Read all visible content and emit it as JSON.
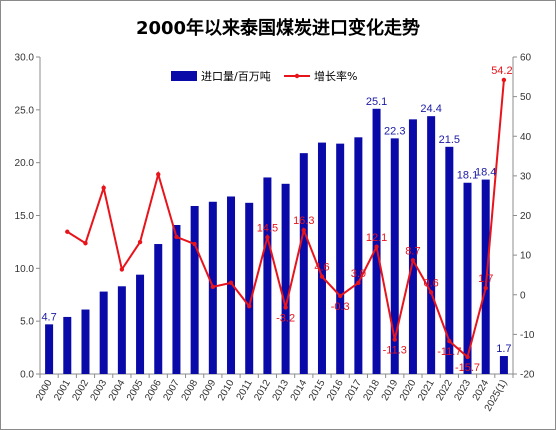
{
  "chart": {
    "title": "2000年以来泰国煤炭进口变化走势"
  },
  "colors": {
    "bar": "#0a0aa8",
    "line": "#e8141b",
    "bar_label": "#1a1aa6",
    "line_label": "#e8141b"
  },
  "chart_data": {
    "type": "bar",
    "title": "2000年以来泰国煤炭进口变化走势",
    "categories": [
      "2000",
      "2001",
      "2002",
      "2003",
      "2004",
      "2005",
      "2006",
      "2007",
      "2008",
      "2009",
      "2010",
      "2011",
      "2012",
      "2013",
      "2014",
      "2015",
      "2016",
      "2017",
      "2018",
      "2019",
      "2020",
      "2021",
      "2022",
      "2023",
      "2024",
      "2025(1)"
    ],
    "series": [
      {
        "name": "进口量/百万吨",
        "type": "bar",
        "axis": "left",
        "values": [
          4.7,
          5.4,
          6.1,
          7.8,
          8.3,
          9.4,
          12.3,
          14.1,
          15.9,
          16.3,
          16.8,
          16.2,
          18.6,
          18.0,
          20.9,
          21.9,
          21.8,
          22.4,
          25.1,
          22.3,
          24.1,
          24.4,
          21.5,
          18.1,
          18.4,
          1.7
        ]
      },
      {
        "name": "增长率%",
        "type": "line",
        "axis": "right",
        "values": [
          null,
          15.9,
          13.0,
          27.0,
          6.4,
          13.3,
          30.4,
          14.6,
          12.8,
          2.0,
          3.0,
          -2.9,
          14.5,
          -3.2,
          16.3,
          4.6,
          -0.3,
          3.0,
          12.1,
          -11.3,
          8.7,
          0.6,
          -11.7,
          -15.7,
          1.7,
          54.2
        ]
      }
    ],
    "bar_labels": [
      {
        "index": 0,
        "text": "4.7"
      },
      {
        "index": 18,
        "text": "25.1"
      },
      {
        "index": 19,
        "text": "22.3"
      },
      {
        "index": 21,
        "text": "24.4"
      },
      {
        "index": 22,
        "text": "21.5"
      },
      {
        "index": 23,
        "text": "18.1"
      },
      {
        "index": 24,
        "text": "18.4"
      },
      {
        "index": 25,
        "text": "1.7"
      }
    ],
    "line_labels": [
      {
        "index": 12,
        "text": "14.5"
      },
      {
        "index": 13,
        "text": "-3.2"
      },
      {
        "index": 14,
        "text": "16.3"
      },
      {
        "index": 15,
        "text": "4.6"
      },
      {
        "index": 16,
        "text": "-0.3"
      },
      {
        "index": 17,
        "text": "3.0"
      },
      {
        "index": 18,
        "text": "12.1"
      },
      {
        "index": 19,
        "text": "-11.3"
      },
      {
        "index": 20,
        "text": "8.7"
      },
      {
        "index": 21,
        "text": "0.6"
      },
      {
        "index": 22,
        "text": "-11.7"
      },
      {
        "index": 23,
        "text": "-15.7"
      },
      {
        "index": 24,
        "text": "1.7"
      },
      {
        "index": 25,
        "text": "54.2"
      }
    ],
    "y_left": {
      "min": 0,
      "max": 30,
      "step": 5,
      "tick_labels": [
        "0.0",
        "5.0",
        "10.0",
        "15.0",
        "20.0",
        "25.0",
        "30.0"
      ]
    },
    "y_right": {
      "min": -20,
      "max": 60,
      "step": 10,
      "tick_labels": [
        "-20",
        "-10",
        "0",
        "10",
        "20",
        "30",
        "40",
        "50",
        "60"
      ]
    },
    "grid": false,
    "legend": {
      "position": "top-center",
      "items": [
        "进口量/百万吨",
        "增长率%"
      ]
    }
  }
}
